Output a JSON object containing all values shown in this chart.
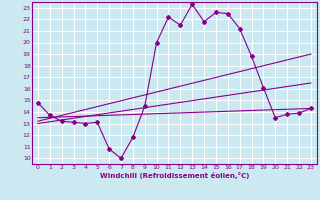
{
  "title": "",
  "xlabel": "Windchill (Refroidissement éolien,°C)",
  "bg_color": "#cce8f0",
  "line_color": "#880088",
  "grid_color": "#ffffff",
  "axis_color": "#880088",
  "x_ticks": [
    0,
    1,
    2,
    3,
    4,
    5,
    6,
    7,
    8,
    9,
    10,
    11,
    12,
    13,
    14,
    15,
    16,
    17,
    18,
    19,
    20,
    21,
    22,
    23
  ],
  "y_ticks": [
    10,
    11,
    12,
    13,
    14,
    15,
    16,
    17,
    18,
    19,
    20,
    21,
    22,
    23
  ],
  "xlim": [
    -0.5,
    23.5
  ],
  "ylim": [
    9.5,
    23.5
  ],
  "curve1_x": [
    0,
    1,
    2,
    3,
    4,
    5,
    6,
    7,
    8,
    9,
    10,
    11,
    12,
    13,
    14,
    15,
    16,
    17,
    18,
    19,
    20,
    21,
    22,
    23
  ],
  "curve1_y": [
    14.8,
    13.7,
    13.2,
    13.1,
    13.0,
    13.1,
    10.8,
    10.0,
    11.8,
    14.5,
    20.0,
    22.2,
    21.5,
    23.3,
    21.8,
    22.6,
    22.5,
    21.2,
    18.8,
    16.1,
    13.5,
    13.8,
    13.9,
    14.3
  ],
  "line1_x": [
    0,
    23
  ],
  "line1_y": [
    13.2,
    19.0
  ],
  "line2_x": [
    0,
    23
  ],
  "line2_y": [
    13.0,
    16.5
  ],
  "line3_x": [
    0,
    23
  ],
  "line3_y": [
    13.5,
    14.3
  ]
}
